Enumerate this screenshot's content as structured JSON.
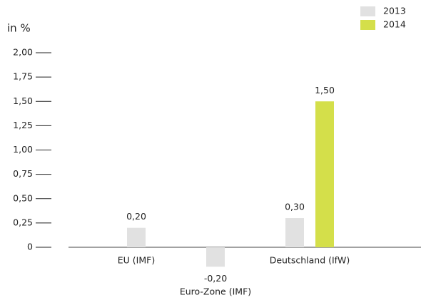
{
  "chart_data": {
    "type": "bar",
    "y_label": "in %",
    "categories": [
      "EU (IMF)",
      "Euro-Zone (IMF)",
      "Deutschland (IfW)"
    ],
    "series": [
      {
        "name": "2013",
        "color": "#e1e1e1",
        "values": [
          0.2,
          -0.2,
          0.3
        ],
        "value_labels": [
          "0,20",
          "-0,20",
          "0,30"
        ]
      },
      {
        "name": "2014",
        "color": "#d4df4a",
        "values": [
          null,
          null,
          1.5
        ],
        "value_labels": [
          null,
          null,
          "1,50"
        ]
      }
    ],
    "ylim": [
      0,
      2
    ],
    "yticks": [
      0,
      {
        "value": 0.25,
        "label": "0,25"
      },
      {
        "value": 0.5,
        "label": "0,50"
      },
      {
        "value": 0.75,
        "label": "0,75"
      },
      {
        "value": 1,
        "label": "1,00"
      },
      {
        "value": 1.25,
        "label": "1,25"
      },
      {
        "value": 1.5,
        "label": "1,50"
      },
      {
        "value": 1.75,
        "label": "1,75"
      },
      {
        "value": 2,
        "label": "2,00"
      }
    ],
    "legend": "top-right"
  }
}
